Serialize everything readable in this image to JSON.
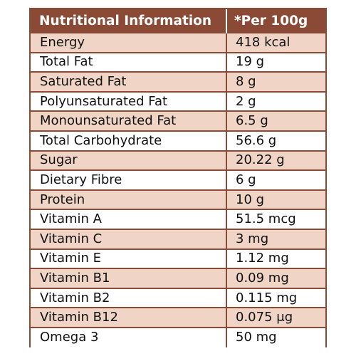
{
  "colors": {
    "header_bg": "#8b4a35",
    "header_text": "#ffffff",
    "shaded_row": "#f0d5c6",
    "plain_row": "#ffffff",
    "border": "#8a4a36"
  },
  "table": {
    "header": {
      "nutrient": "Nutritional Information",
      "value": "*Per 100g"
    },
    "rows": [
      {
        "nutrient": "Energy",
        "value": "418 kcal"
      },
      {
        "nutrient": "Total Fat",
        "value": "19 g"
      },
      {
        "nutrient": "Saturated Fat",
        "value": "8 g"
      },
      {
        "nutrient": "Polyunsaturated Fat",
        "value": "2 g"
      },
      {
        "nutrient": "Monounsaturated Fat",
        "value": "6.5 g"
      },
      {
        "nutrient": "Total Carbohydrate",
        "value": "56.6 g"
      },
      {
        "nutrient": "Sugar",
        "value": "20.22 g"
      },
      {
        "nutrient": "Dietary Fibre",
        "value": "6 g"
      },
      {
        "nutrient": "Protein",
        "value": "10 g"
      },
      {
        "nutrient": "Vitamin A",
        "value": "51.5 mcg"
      },
      {
        "nutrient": "Vitamin C",
        "value": "3 mg"
      },
      {
        "nutrient": "Vitamin E",
        "value": "1.12 mg"
      },
      {
        "nutrient": "Vitamin B1",
        "value": "0.09 mg"
      },
      {
        "nutrient": "Vitamin B2",
        "value": "0.115 mg"
      },
      {
        "nutrient": "Vitamin B12",
        "value": "0.075 μg"
      },
      {
        "nutrient": "Omega 3",
        "value": "50 mg"
      }
    ]
  }
}
